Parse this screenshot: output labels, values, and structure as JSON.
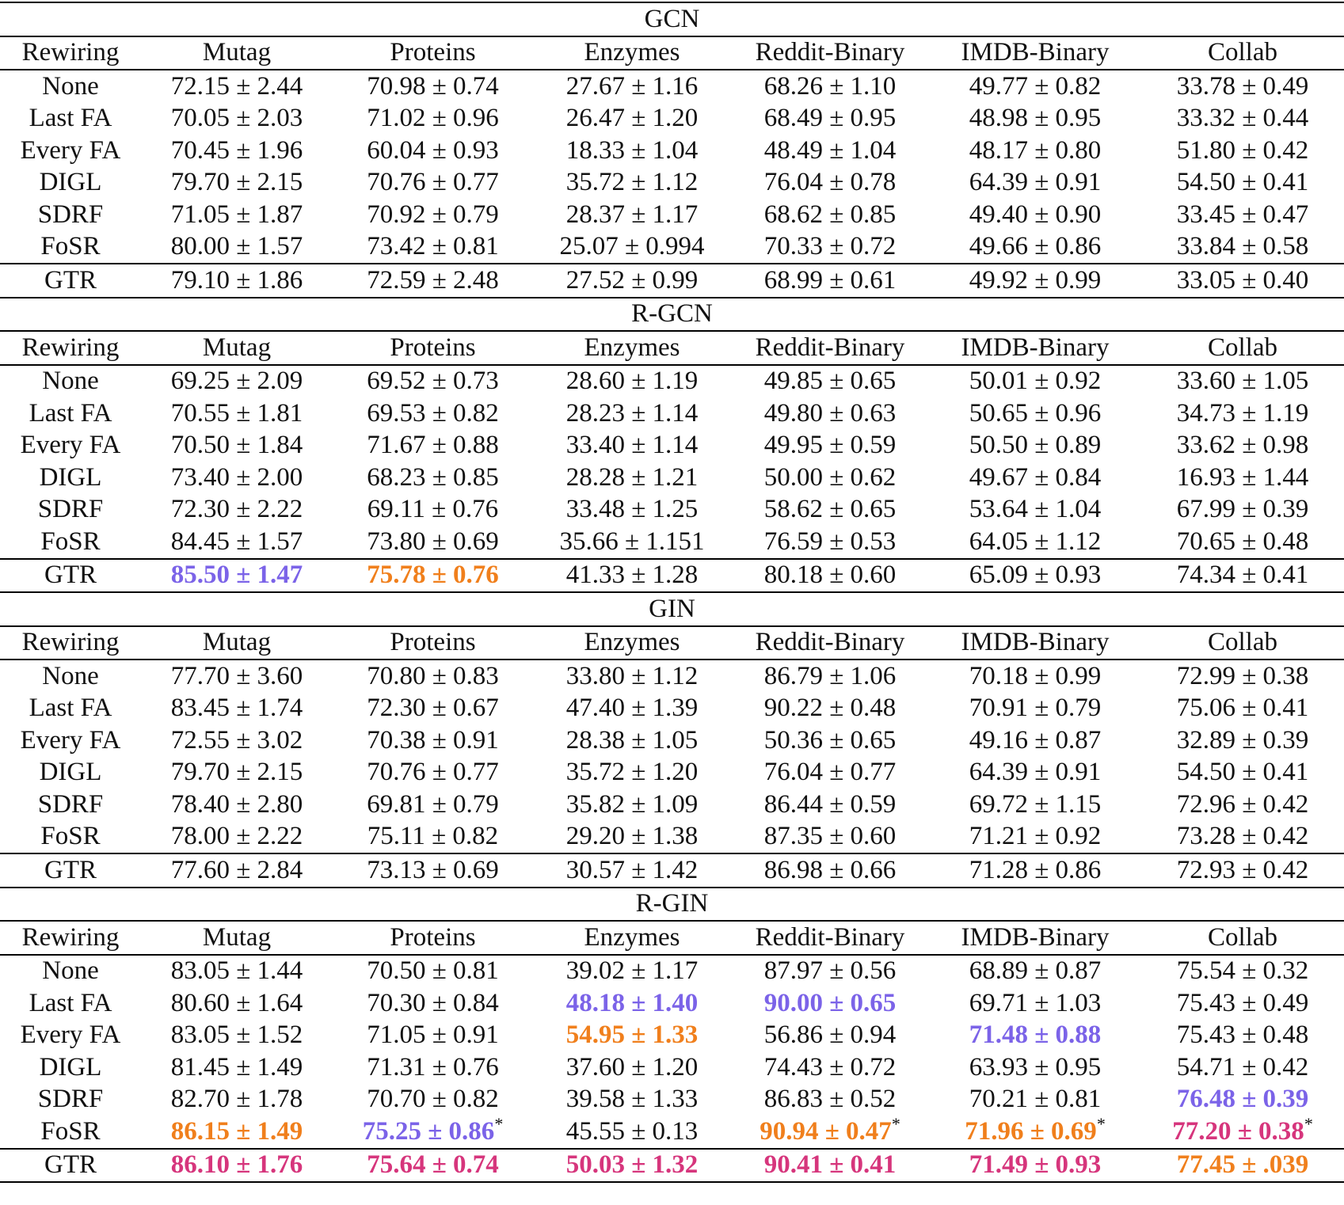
{
  "columns": [
    "Rewiring",
    "Mutag",
    "Proteins",
    "Enzymes",
    "Reddit-Binary",
    "IMDB-Binary",
    "Collab"
  ],
  "highlight_colors": {
    "purple": "#7b63e8",
    "orange": "#f07f1c",
    "magenta": "#d6357c"
  },
  "sections": [
    {
      "title": "GCN",
      "rows": [
        {
          "label": "None",
          "cells": [
            {
              "v": "72.15 ± 2.44"
            },
            {
              "v": "70.98 ± 0.74"
            },
            {
              "v": "27.67 ± 1.16"
            },
            {
              "v": "68.26 ± 1.10"
            },
            {
              "v": "49.77 ± 0.82"
            },
            {
              "v": "33.78 ± 0.49"
            }
          ]
        },
        {
          "label": "Last FA",
          "cells": [
            {
              "v": "70.05 ± 2.03"
            },
            {
              "v": "71.02 ± 0.96"
            },
            {
              "v": "26.47 ± 1.20"
            },
            {
              "v": "68.49 ± 0.95"
            },
            {
              "v": "48.98 ± 0.95"
            },
            {
              "v": "33.32 ± 0.44"
            }
          ]
        },
        {
          "label": "Every FA",
          "cells": [
            {
              "v": "70.45 ± 1.96"
            },
            {
              "v": "60.04 ± 0.93"
            },
            {
              "v": "18.33 ± 1.04"
            },
            {
              "v": "48.49 ± 1.04"
            },
            {
              "v": "48.17 ± 0.80"
            },
            {
              "v": "51.80 ± 0.42"
            }
          ]
        },
        {
          "label": "DIGL",
          "cells": [
            {
              "v": "79.70 ± 2.15"
            },
            {
              "v": "70.76 ± 0.77"
            },
            {
              "v": "35.72 ± 1.12"
            },
            {
              "v": "76.04 ± 0.78"
            },
            {
              "v": "64.39 ± 0.91"
            },
            {
              "v": "54.50 ± 0.41"
            }
          ]
        },
        {
          "label": "SDRF",
          "cells": [
            {
              "v": "71.05 ± 1.87"
            },
            {
              "v": "70.92 ± 0.79"
            },
            {
              "v": "28.37 ± 1.17"
            },
            {
              "v": "68.62 ± 0.85"
            },
            {
              "v": "49.40 ± 0.90"
            },
            {
              "v": "33.45 ± 0.47"
            }
          ]
        },
        {
          "label": "FoSR",
          "cells": [
            {
              "v": "80.00 ± 1.57"
            },
            {
              "v": "73.42 ± 0.81"
            },
            {
              "v": "25.07 ± 0.994"
            },
            {
              "v": "70.33 ± 0.72"
            },
            {
              "v": "49.66 ± 0.86"
            },
            {
              "v": "33.84 ± 0.58"
            }
          ]
        },
        {
          "label": "GTR",
          "cells": [
            {
              "v": "79.10 ± 1.86"
            },
            {
              "v": "72.59 ± 2.48"
            },
            {
              "v": "27.52 ± 0.99"
            },
            {
              "v": "68.99 ± 0.61"
            },
            {
              "v": "49.92 ± 0.99"
            },
            {
              "v": "33.05 ± 0.40"
            }
          ]
        }
      ]
    },
    {
      "title": "R-GCN",
      "rows": [
        {
          "label": "None",
          "cells": [
            {
              "v": "69.25 ± 2.09"
            },
            {
              "v": "69.52 ± 0.73"
            },
            {
              "v": "28.60 ± 1.19"
            },
            {
              "v": "49.85 ± 0.65"
            },
            {
              "v": "50.01 ± 0.92"
            },
            {
              "v": "33.60 ± 1.05"
            }
          ]
        },
        {
          "label": "Last FA",
          "cells": [
            {
              "v": "70.55 ± 1.81"
            },
            {
              "v": "69.53 ± 0.82"
            },
            {
              "v": "28.23 ± 1.14"
            },
            {
              "v": "49.80 ± 0.63"
            },
            {
              "v": "50.65 ± 0.96"
            },
            {
              "v": "34.73 ± 1.19"
            }
          ]
        },
        {
          "label": "Every FA",
          "cells": [
            {
              "v": "70.50 ± 1.84"
            },
            {
              "v": "71.67 ± 0.88"
            },
            {
              "v": "33.40 ± 1.14"
            },
            {
              "v": "49.95 ± 0.59"
            },
            {
              "v": "50.50 ± 0.89"
            },
            {
              "v": "33.62 ± 0.98"
            }
          ]
        },
        {
          "label": "DIGL",
          "cells": [
            {
              "v": "73.40 ± 2.00"
            },
            {
              "v": "68.23 ± 0.85"
            },
            {
              "v": "28.28 ± 1.21"
            },
            {
              "v": "50.00 ± 0.62"
            },
            {
              "v": "49.67 ± 0.84"
            },
            {
              "v": "16.93 ± 1.44"
            }
          ]
        },
        {
          "label": "SDRF",
          "cells": [
            {
              "v": "72.30 ± 2.22"
            },
            {
              "v": "69.11 ± 0.76"
            },
            {
              "v": "33.48 ± 1.25"
            },
            {
              "v": "58.62 ± 0.65"
            },
            {
              "v": "53.64 ± 1.04"
            },
            {
              "v": "67.99 ± 0.39"
            }
          ]
        },
        {
          "label": "FoSR",
          "cells": [
            {
              "v": "84.45 ± 1.57"
            },
            {
              "v": "73.80 ± 0.69"
            },
            {
              "v": "35.66 ± 1.151"
            },
            {
              "v": "76.59 ± 0.53"
            },
            {
              "v": "64.05 ± 1.12"
            },
            {
              "v": "70.65 ± 0.48"
            }
          ]
        },
        {
          "label": "GTR",
          "cells": [
            {
              "v": "85.50 ± 1.47",
              "c": "purple"
            },
            {
              "v": "75.78 ± 0.76",
              "c": "orange"
            },
            {
              "v": "41.33 ± 1.28"
            },
            {
              "v": "80.18 ± 0.60"
            },
            {
              "v": "65.09 ± 0.93"
            },
            {
              "v": "74.34 ± 0.41"
            }
          ]
        }
      ]
    },
    {
      "title": "GIN",
      "rows": [
        {
          "label": "None",
          "cells": [
            {
              "v": "77.70 ± 3.60"
            },
            {
              "v": "70.80 ± 0.83"
            },
            {
              "v": "33.80 ± 1.12"
            },
            {
              "v": "86.79 ± 1.06"
            },
            {
              "v": "70.18 ± 0.99"
            },
            {
              "v": "72.99 ± 0.38"
            }
          ]
        },
        {
          "label": "Last FA",
          "cells": [
            {
              "v": "83.45 ± 1.74"
            },
            {
              "v": "72.30 ± 0.67"
            },
            {
              "v": "47.40 ± 1.39"
            },
            {
              "v": "90.22 ± 0.48"
            },
            {
              "v": "70.91 ± 0.79"
            },
            {
              "v": "75.06 ± 0.41"
            }
          ]
        },
        {
          "label": "Every FA",
          "cells": [
            {
              "v": "72.55 ± 3.02"
            },
            {
              "v": "70.38 ± 0.91"
            },
            {
              "v": "28.38 ± 1.05"
            },
            {
              "v": "50.36 ± 0.65"
            },
            {
              "v": "49.16 ± 0.87"
            },
            {
              "v": "32.89 ± 0.39"
            }
          ]
        },
        {
          "label": "DIGL",
          "cells": [
            {
              "v": "79.70 ± 2.15"
            },
            {
              "v": "70.76 ± 0.77"
            },
            {
              "v": "35.72 ± 1.20"
            },
            {
              "v": "76.04 ± 0.77"
            },
            {
              "v": "64.39 ± 0.91"
            },
            {
              "v": "54.50 ± 0.41"
            }
          ]
        },
        {
          "label": "SDRF",
          "cells": [
            {
              "v": "78.40 ± 2.80"
            },
            {
              "v": "69.81 ± 0.79"
            },
            {
              "v": "35.82 ± 1.09"
            },
            {
              "v": "86.44 ± 0.59"
            },
            {
              "v": "69.72 ± 1.15"
            },
            {
              "v": "72.96 ± 0.42"
            }
          ]
        },
        {
          "label": "FoSR",
          "cells": [
            {
              "v": "78.00 ± 2.22"
            },
            {
              "v": "75.11 ± 0.82"
            },
            {
              "v": "29.20 ± 1.38"
            },
            {
              "v": "87.35 ± 0.60"
            },
            {
              "v": "71.21 ± 0.92"
            },
            {
              "v": "73.28 ± 0.42"
            }
          ]
        },
        {
          "label": "GTR",
          "cells": [
            {
              "v": "77.60 ± 2.84"
            },
            {
              "v": "73.13 ± 0.69"
            },
            {
              "v": "30.57 ± 1.42"
            },
            {
              "v": "86.98 ± 0.66"
            },
            {
              "v": "71.28 ± 0.86"
            },
            {
              "v": "72.93 ± 0.42"
            }
          ]
        }
      ]
    },
    {
      "title": "R-GIN",
      "rows": [
        {
          "label": "None",
          "cells": [
            {
              "v": "83.05 ± 1.44"
            },
            {
              "v": "70.50 ± 0.81"
            },
            {
              "v": "39.02 ± 1.17"
            },
            {
              "v": "87.97 ± 0.56"
            },
            {
              "v": "68.89 ± 0.87"
            },
            {
              "v": "75.54 ± 0.32"
            }
          ]
        },
        {
          "label": "Last FA",
          "cells": [
            {
              "v": "80.60 ± 1.64"
            },
            {
              "v": "70.30 ± 0.84"
            },
            {
              "v": "48.18 ± 1.40",
              "c": "purple"
            },
            {
              "v": "90.00 ± 0.65",
              "c": "purple"
            },
            {
              "v": "69.71 ± 1.03"
            },
            {
              "v": "75.43 ± 0.49"
            }
          ]
        },
        {
          "label": "Every FA",
          "cells": [
            {
              "v": "83.05 ± 1.52"
            },
            {
              "v": "71.05 ± 0.91"
            },
            {
              "v": "54.95 ± 1.33",
              "c": "orange"
            },
            {
              "v": "56.86 ± 0.94"
            },
            {
              "v": "71.48 ± 0.88",
              "c": "purple"
            },
            {
              "v": "75.43 ± 0.48"
            }
          ]
        },
        {
          "label": "DIGL",
          "cells": [
            {
              "v": "81.45 ± 1.49"
            },
            {
              "v": "71.31 ± 0.76"
            },
            {
              "v": "37.60 ± 1.20"
            },
            {
              "v": "74.43 ± 0.72"
            },
            {
              "v": "63.93 ± 0.95"
            },
            {
              "v": "54.71 ± 0.42"
            }
          ]
        },
        {
          "label": "SDRF",
          "cells": [
            {
              "v": "82.70 ± 1.78"
            },
            {
              "v": "70.70 ± 0.82"
            },
            {
              "v": "39.58 ± 1.33"
            },
            {
              "v": "86.83 ± 0.52"
            },
            {
              "v": "70.21 ± 0.81"
            },
            {
              "v": "76.48 ± 0.39",
              "c": "purple"
            }
          ]
        },
        {
          "label": "FoSR",
          "cells": [
            {
              "v": "86.15 ± 1.49",
              "c": "orange"
            },
            {
              "v": "75.25 ± 0.86",
              "c": "purple",
              "star": "*"
            },
            {
              "v": "45.55 ± 0.13"
            },
            {
              "v": "90.94 ± 0.47",
              "c": "orange",
              "star": "*"
            },
            {
              "v": "71.96 ± 0.69",
              "c": "orange",
              "star": "*"
            },
            {
              "v": "77.20 ± 0.38",
              "c": "magenta",
              "star": "*"
            }
          ]
        },
        {
          "label": "GTR",
          "cells": [
            {
              "v": "86.10 ± 1.76",
              "c": "magenta"
            },
            {
              "v": "75.64 ± 0.74",
              "c": "magenta"
            },
            {
              "v": "50.03 ± 1.32",
              "c": "magenta"
            },
            {
              "v": "90.41 ± 0.41",
              "c": "magenta"
            },
            {
              "v": "71.49 ± 0.93",
              "c": "magenta"
            },
            {
              "v": "77.45 ± .039",
              "c": "orange"
            }
          ]
        }
      ]
    }
  ]
}
